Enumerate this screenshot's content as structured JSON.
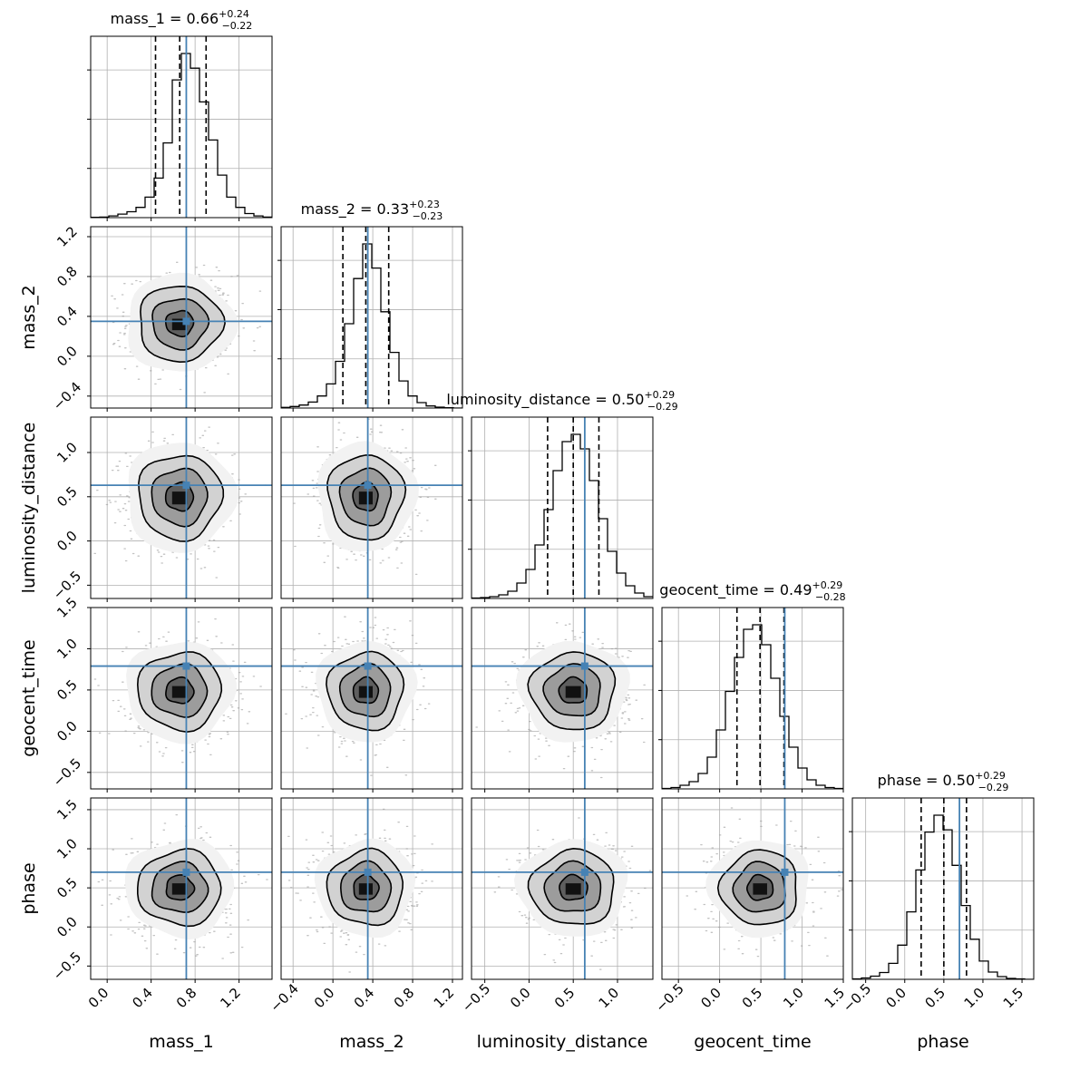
{
  "chart_data": {
    "type": "corner",
    "grid": true,
    "parameters": [
      "mass_1",
      "mass_2",
      "luminosity_distance",
      "geocent_time",
      "phase"
    ],
    "titles": [
      {
        "name": "mass_1",
        "median": "0.66",
        "plus": "+0.24",
        "minus": "−0.22"
      },
      {
        "name": "mass_2",
        "median": "0.33",
        "plus": "+0.23",
        "minus": "−0.23"
      },
      {
        "name": "luminosity_distance",
        "median": "0.50",
        "plus": "+0.29",
        "minus": "−0.29"
      },
      {
        "name": "geocent_time",
        "median": "0.49",
        "plus": "+0.29",
        "minus": "−0.28"
      },
      {
        "name": "phase",
        "median": "0.50",
        "plus": "+0.29",
        "minus": "−0.29"
      }
    ],
    "axis_ranges": [
      [
        -0.15,
        1.5
      ],
      [
        -0.52,
        1.3
      ],
      [
        -0.65,
        1.4
      ],
      [
        -0.7,
        1.5
      ],
      [
        -0.67,
        1.65
      ]
    ],
    "ticks": [
      {
        "values": [
          0.0,
          0.4,
          0.8,
          1.2
        ],
        "labels": [
          "0.0",
          "0.4",
          "0.8",
          "1.2"
        ]
      },
      {
        "values": [
          -0.4,
          0.0,
          0.4,
          0.8,
          1.2
        ],
        "labels": [
          "−0.4",
          "0.0",
          "0.4",
          "0.8",
          "1.2"
        ]
      },
      {
        "values": [
          -0.5,
          0.0,
          0.5,
          1.0
        ],
        "labels": [
          "−0.5",
          "0.0",
          "0.5",
          "1.0"
        ]
      },
      {
        "values": [
          -0.5,
          0.0,
          0.5,
          1.0,
          1.5
        ],
        "labels": [
          "−0.5",
          "0.0",
          "0.5",
          "1.0",
          "1.5"
        ]
      },
      {
        "values": [
          -0.5,
          0.0,
          0.5,
          1.0,
          1.5
        ],
        "labels": [
          "−0.5",
          "0.0",
          "0.5",
          "1.0",
          "1.5"
        ]
      }
    ],
    "y_ticks": [
      null,
      {
        "values": [
          -0.4,
          0.0,
          0.4,
          0.8,
          1.2
        ],
        "labels": [
          "−0.4",
          "0.0",
          "0.4",
          "0.8",
          "1.2"
        ]
      },
      {
        "values": [
          -0.5,
          0.0,
          0.5,
          1.0
        ],
        "labels": [
          "−0.5",
          "0.0",
          "0.5",
          "1.0"
        ]
      },
      {
        "values": [
          -0.5,
          0.0,
          0.5,
          1.0,
          1.5
        ],
        "labels": [
          "−0.5",
          "0.0",
          "0.5",
          "1.0",
          "1.5"
        ]
      },
      {
        "values": [
          -0.5,
          0.0,
          0.5,
          1.0,
          1.5
        ],
        "labels": [
          "−0.5",
          "0.0",
          "0.5",
          "1.0",
          "1.5"
        ]
      }
    ],
    "quantiles": [
      [
        0.44,
        0.66,
        0.9
      ],
      [
        0.1,
        0.33,
        0.56
      ],
      [
        0.21,
        0.5,
        0.79
      ],
      [
        0.21,
        0.49,
        0.78
      ],
      [
        0.21,
        0.5,
        0.79
      ]
    ],
    "truths": [
      0.72,
      0.35,
      0.63,
      0.79,
      0.7
    ],
    "posterior_means": [
      0.66,
      0.33,
      0.5,
      0.49,
      0.5
    ],
    "posterior_sds": [
      0.23,
      0.23,
      0.29,
      0.285,
      0.29
    ],
    "histograms": [
      {
        "edges_start": -0.15,
        "bin_width": 0.0825,
        "counts": [
          1,
          2,
          6,
          12,
          20,
          35,
          70,
          135,
          255,
          470,
          560,
          510,
          395,
          265,
          145,
          70,
          35,
          14,
          6,
          2
        ]
      },
      {
        "edges_start": -0.52,
        "bin_width": 0.091,
        "counts": [
          2,
          5,
          10,
          20,
          40,
          80,
          155,
          280,
          430,
          545,
          465,
          320,
          185,
          90,
          40,
          18,
          7,
          3,
          1,
          0
        ]
      },
      {
        "edges_start": -0.65,
        "bin_width": 0.1025,
        "counts": [
          1,
          2,
          4,
          8,
          16,
          34,
          64,
          118,
          196,
          282,
          346,
          362,
          330,
          260,
          176,
          104,
          56,
          28,
          12,
          4
        ]
      },
      {
        "edges_start": -0.7,
        "bin_width": 0.11,
        "counts": [
          1,
          3,
          8,
          16,
          34,
          70,
          130,
          215,
          290,
          352,
          362,
          318,
          244,
          160,
          92,
          46,
          20,
          8,
          3,
          1
        ]
      },
      {
        "edges_start": -0.67,
        "bin_width": 0.116,
        "counts": [
          1,
          3,
          7,
          15,
          35,
          75,
          148,
          240,
          323,
          360,
          328,
          250,
          162,
          88,
          40,
          16,
          6,
          2,
          1,
          0
        ]
      }
    ],
    "truth_color": "#4682b4",
    "line_color": "#000000"
  }
}
